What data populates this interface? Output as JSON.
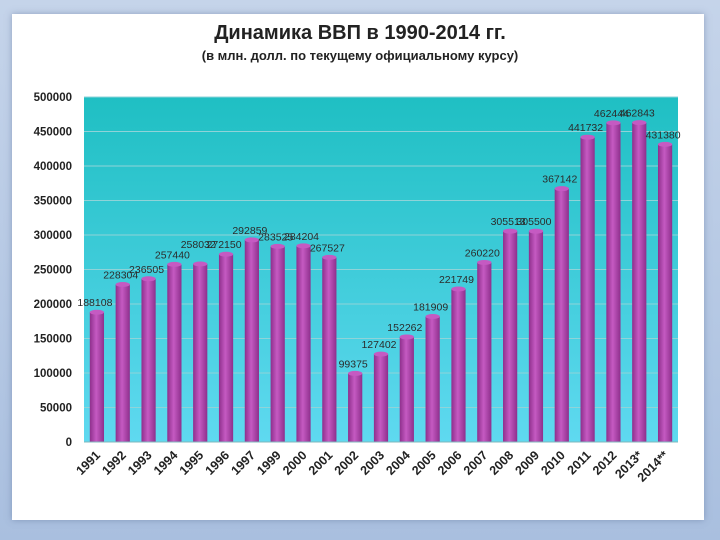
{
  "chart_data": {
    "type": "bar",
    "title": "Динамика ВВП в 1990-2014 гг.",
    "subtitle": "(в млн. долл. по текущему официальному курсу)",
    "categories": [
      "1991",
      "1992",
      "1993",
      "1994",
      "1995",
      "1996",
      "1997",
      "1999",
      "2000",
      "2001",
      "2002",
      "2003",
      "2004",
      "2005",
      "2006",
      "2007",
      "2008",
      "2009",
      "2010",
      "2011",
      "2012",
      "2013*",
      "2014**"
    ],
    "values": [
      188108,
      228304,
      236505,
      257440,
      258032,
      272150,
      292859,
      283525,
      284204,
      267527,
      99375,
      127402,
      152262,
      181909,
      221749,
      260220,
      305513,
      305500,
      367142,
      441732,
      462444,
      462843,
      431380
    ],
    "data_labels": [
      "188108",
      "228304",
      "236505",
      "257440",
      "258032",
      "272150",
      "292859",
      "283525",
      "284204",
      "267527",
      "99375",
      "127402",
      "152262",
      "181909",
      "221749",
      "260220",
      "305513",
      "305500",
      "367142",
      "441732",
      "462444",
      "462843",
      "431380"
    ],
    "yticks": [
      "0",
      "50000",
      "100000",
      "150000",
      "200000",
      "250000",
      "300000",
      "350000",
      "400000",
      "450000",
      "500000"
    ],
    "ylim": [
      0,
      500000
    ],
    "xlabel": "",
    "ylabel": "",
    "grid": true,
    "legend": "none",
    "colors": {
      "bar": "#8e2f8c",
      "bar_light": "#c55ac2",
      "plot_top": "#1fbfc3",
      "plot_bottom": "#5fd9f0",
      "grid": "#8fd3d8"
    }
  }
}
